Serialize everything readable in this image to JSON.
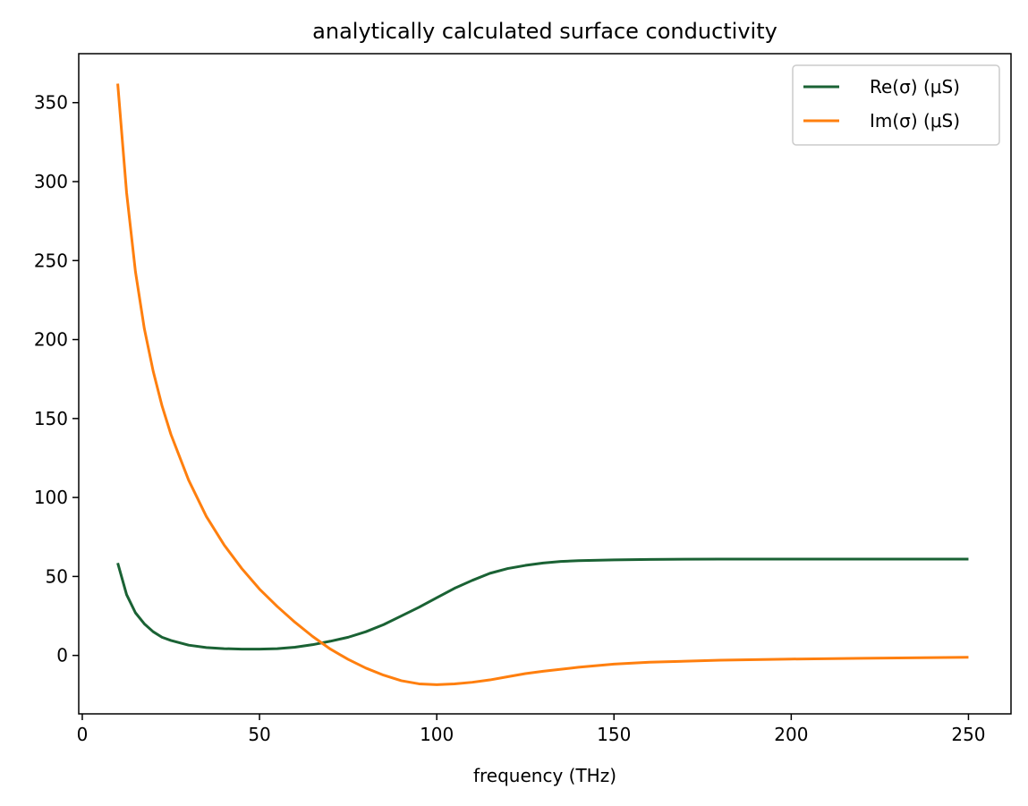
{
  "chart_data": {
    "type": "line",
    "title": "analytically calculated surface conductivity",
    "xlabel": "frequency (THz)",
    "ylabel": "",
    "xlim": [
      -1,
      262
    ],
    "ylim": [
      -37,
      381
    ],
    "xticks": [
      0,
      50,
      100,
      150,
      200,
      250
    ],
    "yticks": [
      0,
      50,
      100,
      150,
      200,
      250,
      300,
      350
    ],
    "grid": false,
    "legend_position": "top-right",
    "series": [
      {
        "name": "Re(σ) (μS)",
        "color": "#1a6234",
        "x": [
          10,
          12.5,
          15,
          17.5,
          20,
          22.5,
          25,
          30,
          35,
          40,
          45,
          50,
          55,
          60,
          65,
          70,
          75,
          80,
          85,
          90,
          95,
          100,
          105,
          110,
          115,
          120,
          125,
          130,
          135,
          140,
          150,
          160,
          180,
          200,
          220,
          250
        ],
        "y": [
          58.5,
          38.5,
          27,
          20,
          15,
          11.5,
          9.5,
          6.5,
          5,
          4.3,
          4,
          4,
          4.3,
          5.2,
          6.8,
          9,
          11.5,
          15,
          19.5,
          25,
          30.5,
          36.5,
          42.5,
          47.5,
          52,
          55,
          57,
          58.5,
          59.5,
          60,
          60.5,
          60.8,
          61,
          61,
          61,
          61
        ]
      },
      {
        "name": "Im(σ) (μS)",
        "color": "#ff7f0e",
        "x": [
          10,
          12.5,
          15,
          17.5,
          20,
          22.5,
          25,
          30,
          35,
          40,
          45,
          50,
          55,
          60,
          65,
          70,
          75,
          80,
          85,
          90,
          95,
          100,
          105,
          110,
          115,
          120,
          125,
          130,
          140,
          150,
          160,
          180,
          200,
          220,
          250
        ],
        "y": [
          362,
          293,
          243,
          207,
          180,
          158,
          140,
          111,
          88,
          70,
          55,
          42,
          31,
          21,
          12,
          4,
          -2.5,
          -8,
          -12.5,
          -16,
          -18,
          -18.5,
          -18,
          -17,
          -15.5,
          -13.5,
          -11.5,
          -10,
          -7.5,
          -5.5,
          -4.3,
          -3,
          -2.3,
          -1.8,
          -1.2
        ]
      }
    ]
  }
}
